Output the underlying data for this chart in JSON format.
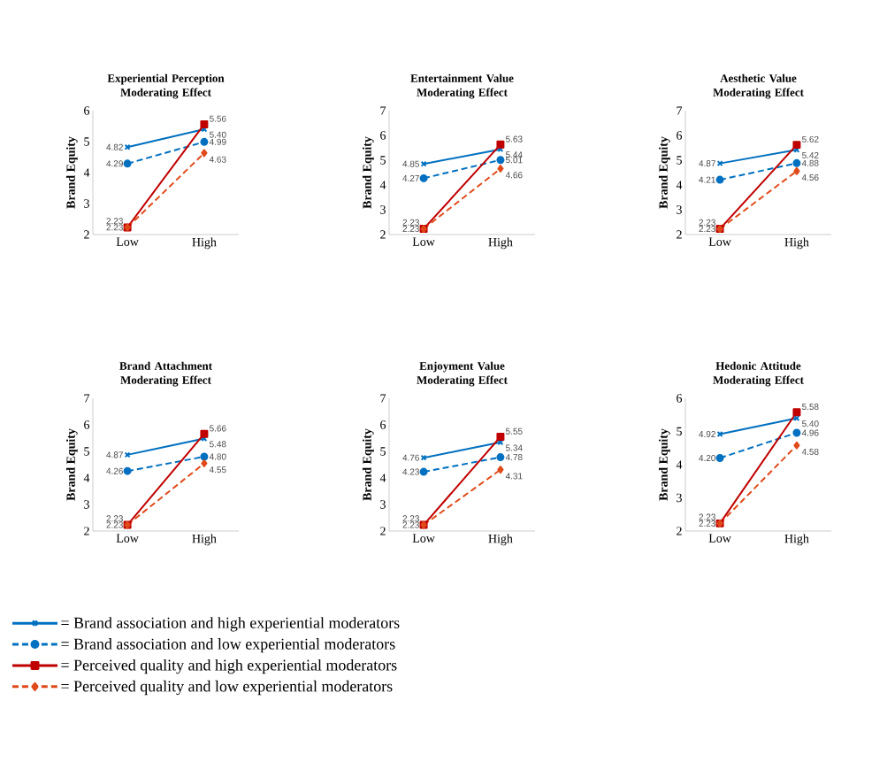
{
  "chart_data": [
    {
      "type": "line",
      "title": "Experiential Perception Moderating Effect",
      "ylabel": "Brand Equity",
      "categories": [
        "Low",
        "High"
      ],
      "ylim": [
        2,
        6
      ],
      "yticks": [
        2,
        3,
        4,
        5,
        6
      ],
      "series": [
        {
          "color": "#0070c0",
          "line_style": "solid",
          "marker": "cross",
          "values": [
            4.82,
            5.4
          ],
          "value_labels": [
            "4.82",
            "5.40"
          ]
        },
        {
          "color": "#0070c0",
          "line_style": "dashed",
          "marker": "circle",
          "values": [
            4.29,
            4.99
          ],
          "value_labels": [
            "4.29",
            "4.99"
          ]
        },
        {
          "color": "#c00000",
          "line_style": "solid",
          "marker": "square",
          "values": [
            2.23,
            5.56
          ],
          "value_labels": [
            "2.23",
            "5.56"
          ]
        },
        {
          "color": "#e04a1a",
          "line_style": "dashed",
          "marker": "diamond",
          "values": [
            2.23,
            4.63
          ],
          "value_labels": [
            "2.23",
            "4.63"
          ]
        }
      ]
    },
    {
      "type": "line",
      "title": "Entertainment Value Moderating Effect",
      "ylabel": "Brand Equity",
      "categories": [
        "Low",
        "High"
      ],
      "ylim": [
        2,
        7
      ],
      "yticks": [
        2,
        3,
        4,
        5,
        6,
        7
      ],
      "series": [
        {
          "color": "#0070c0",
          "line_style": "solid",
          "marker": "cross",
          "values": [
            4.85,
            5.44
          ],
          "value_labels": [
            "4.85",
            "5.44"
          ]
        },
        {
          "color": "#0070c0",
          "line_style": "dashed",
          "marker": "circle",
          "values": [
            4.27,
            5.01
          ],
          "value_labels": [
            "4.27",
            "5.01"
          ]
        },
        {
          "color": "#c00000",
          "line_style": "solid",
          "marker": "square",
          "values": [
            2.23,
            5.63
          ],
          "value_labels": [
            "2.23",
            "5.63"
          ]
        },
        {
          "color": "#e04a1a",
          "line_style": "dashed",
          "marker": "diamond",
          "values": [
            2.23,
            4.66
          ],
          "value_labels": [
            "2.23",
            "4.66"
          ]
        }
      ]
    },
    {
      "type": "line",
      "title": "Aesthetic Value Moderating Effect",
      "ylabel": "Brand Equity",
      "categories": [
        "Low",
        "High"
      ],
      "ylim": [
        2,
        7
      ],
      "yticks": [
        2,
        3,
        4,
        5,
        6,
        7
      ],
      "series": [
        {
          "color": "#0070c0",
          "line_style": "solid",
          "marker": "cross",
          "values": [
            4.87,
            5.42
          ],
          "value_labels": [
            "4.87",
            "5.42"
          ]
        },
        {
          "color": "#0070c0",
          "line_style": "dashed",
          "marker": "circle",
          "values": [
            4.21,
            4.88
          ],
          "value_labels": [
            "4.21",
            "4.88"
          ]
        },
        {
          "color": "#c00000",
          "line_style": "solid",
          "marker": "square",
          "values": [
            2.23,
            5.62
          ],
          "value_labels": [
            "2.23",
            "5.62"
          ]
        },
        {
          "color": "#e04a1a",
          "line_style": "dashed",
          "marker": "diamond",
          "values": [
            2.23,
            4.56
          ],
          "value_labels": [
            "2.23",
            "4.56"
          ]
        }
      ]
    },
    {
      "type": "line",
      "title": "Brand Attachment Moderating Effect",
      "ylabel": "Brand Equity",
      "categories": [
        "Low",
        "High"
      ],
      "ylim": [
        2,
        7
      ],
      "yticks": [
        2,
        3,
        4,
        5,
        6,
        7
      ],
      "legend": "bottom",
      "series": [
        {
          "name": "= Brand association and high experiential moderators",
          "color": "#0070c0",
          "line_style": "solid",
          "marker": "cross",
          "values": [
            4.87,
            5.48
          ],
          "value_labels": [
            "4.87",
            "5.48"
          ]
        },
        {
          "name": "= Brand association and low experiential moderators",
          "color": "#0070c0",
          "line_style": "dashed",
          "marker": "circle",
          "values": [
            4.26,
            4.8
          ],
          "value_labels": [
            "4.26",
            "4.80"
          ]
        },
        {
          "name": "= Perceived quality and high experiential moderators",
          "color": "#c00000",
          "line_style": "solid",
          "marker": "square",
          "values": [
            2.23,
            5.66
          ],
          "value_labels": [
            "2.23",
            "5.66"
          ]
        },
        {
          "name": "= Perceived quality and low experiential moderators",
          "color": "#e04a1a",
          "line_style": "dashed",
          "marker": "diamond",
          "values": [
            2.23,
            4.55
          ],
          "value_labels": [
            "2.23",
            "4.55"
          ]
        }
      ]
    },
    {
      "type": "line",
      "title": "Enjoyment Value Moderating Effect",
      "ylabel": "Brand Equity",
      "categories": [
        "Low",
        "High"
      ],
      "ylim": [
        2,
        7
      ],
      "yticks": [
        2,
        3,
        4,
        5,
        6,
        7
      ],
      "series": [
        {
          "color": "#0070c0",
          "line_style": "solid",
          "marker": "cross",
          "values": [
            4.76,
            5.34
          ],
          "value_labels": [
            "4.76",
            "5.34"
          ]
        },
        {
          "color": "#0070c0",
          "line_style": "dashed",
          "marker": "circle",
          "values": [
            4.23,
            4.78
          ],
          "value_labels": [
            "4.23",
            "4.78"
          ]
        },
        {
          "color": "#c00000",
          "line_style": "solid",
          "marker": "square",
          "values": [
            2.23,
            5.55
          ],
          "value_labels": [
            "2.23",
            "5.55"
          ]
        },
        {
          "color": "#e04a1a",
          "line_style": "dashed",
          "marker": "diamond",
          "values": [
            2.23,
            4.31
          ],
          "value_labels": [
            "2.23",
            "4.31"
          ]
        }
      ]
    },
    {
      "type": "line",
      "title": "Hedonic Attitude Moderating Effect",
      "ylabel": "Brand Equity",
      "categories": [
        "Low",
        "High"
      ],
      "ylim": [
        2,
        6
      ],
      "yticks": [
        2,
        3,
        4,
        5,
        6
      ],
      "series": [
        {
          "color": "#0070c0",
          "line_style": "solid",
          "marker": "cross",
          "values": [
            4.92,
            5.4
          ],
          "value_labels": [
            "4.92",
            "5.40"
          ]
        },
        {
          "color": "#0070c0",
          "line_style": "dashed",
          "marker": "circle",
          "values": [
            4.2,
            4.96
          ],
          "value_labels": [
            "4.20",
            "4.96"
          ]
        },
        {
          "color": "#c00000",
          "line_style": "solid",
          "marker": "square",
          "values": [
            2.23,
            5.58
          ],
          "value_labels": [
            "2.23",
            "5.58"
          ]
        },
        {
          "color": "#e04a1a",
          "line_style": "dashed",
          "marker": "diamond",
          "values": [
            2.23,
            4.58
          ],
          "value_labels": [
            "2.23",
            "4.58"
          ]
        }
      ]
    }
  ]
}
